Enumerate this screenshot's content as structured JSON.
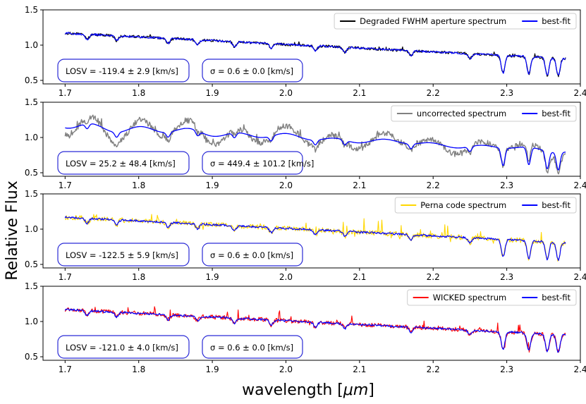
{
  "figure": {
    "ylabel": "Relative Flux",
    "xlabel_prefix": "wavelength [",
    "xlabel_unit": "μm",
    "xlabel_suffix": "]"
  },
  "chart_data": [
    {
      "type": "line",
      "xlim": [
        1.67,
        2.4
      ],
      "ylim": [
        0.45,
        1.5
      ],
      "xticks": [
        "1.7",
        "1.8",
        "1.9",
        "2.0",
        "2.1",
        "2.2",
        "2.3",
        "2.4"
      ],
      "yticks": [
        "0.5",
        "1.0",
        "1.5"
      ],
      "legend": {
        "placement": "top-right",
        "entries": [
          "Degraded FWHM aperture spectrum",
          "best-fit"
        ]
      },
      "annotations": [
        "LOSV = -119.4 ± 2.9 [km/s]",
        "σ = 0.6 ± 0.0 [km/s]"
      ],
      "series": [
        {
          "name": "Degraded FWHM aperture spectrum",
          "color": "#000000",
          "noise": 0.02,
          "spikes": 0.01,
          "width": 1.1
        },
        {
          "name": "best-fit",
          "color": "#0000ff",
          "noise": 0.014,
          "spikes": 0,
          "width": 1.2
        }
      ]
    },
    {
      "type": "line",
      "xlim": [
        1.67,
        2.4
      ],
      "ylim": [
        0.45,
        1.5
      ],
      "xticks": [
        "1.7",
        "1.8",
        "1.9",
        "2.0",
        "2.1",
        "2.2",
        "2.3",
        "2.4"
      ],
      "yticks": [
        "0.5",
        "1.0",
        "1.5"
      ],
      "legend": {
        "placement": "top-right",
        "entries": [
          "uncorrected spectrum",
          "best-fit"
        ]
      },
      "annotations": [
        "LOSV = 25.2 ± 48.4 [km/s]",
        "σ = 449.4 ± 101.2 [km/s]"
      ],
      "series": [
        {
          "name": "uncorrected spectrum",
          "color": "#808080",
          "noise": 0.04,
          "spikes": 0.02,
          "width": 1.4,
          "wiggle": 0.17
        },
        {
          "name": "best-fit",
          "color": "#0000ff",
          "noise": 0,
          "spikes": 0,
          "width": 1.3,
          "wiggle": 0.05,
          "smooth": true
        }
      ]
    },
    {
      "type": "line",
      "xlim": [
        1.67,
        2.4
      ],
      "ylim": [
        0.45,
        1.5
      ],
      "xticks": [
        "1.7",
        "1.8",
        "1.9",
        "2.0",
        "2.1",
        "2.2",
        "2.3",
        "2.4"
      ],
      "yticks": [
        "0.5",
        "1.0",
        "1.5"
      ],
      "legend": {
        "placement": "top-right",
        "entries": [
          "Perna code spectrum",
          "best-fit"
        ]
      },
      "annotations": [
        "LOSV = -122.5 ± 5.9 [km/s]",
        "σ = 0.6 ± 0.0 [km/s]"
      ],
      "series": [
        {
          "name": "Perna code spectrum",
          "color": "#ffd700",
          "noise": 0.035,
          "spikes": 0.04,
          "width": 1.1
        },
        {
          "name": "best-fit",
          "color": "#0000ff",
          "noise": 0.014,
          "spikes": 0,
          "width": 1.2
        }
      ]
    },
    {
      "type": "line",
      "xlim": [
        1.67,
        2.4
      ],
      "ylim": [
        0.45,
        1.5
      ],
      "xticks": [
        "1.7",
        "1.8",
        "1.9",
        "2.0",
        "2.1",
        "2.2",
        "2.3",
        "2.4"
      ],
      "yticks": [
        "0.5",
        "1.0",
        "1.5"
      ],
      "legend": {
        "placement": "top-right",
        "entries": [
          "WICKED spectrum",
          "best-fit"
        ]
      },
      "annotations": [
        "LOSV = -121.0 ± 4.0 [km/s]",
        "σ = 0.6 ± 0.0 [km/s]"
      ],
      "series": [
        {
          "name": "WICKED spectrum",
          "color": "#ff0000",
          "noise": 0.03,
          "spikes": 0.03,
          "width": 1.1
        },
        {
          "name": "best-fit",
          "color": "#0000ff",
          "noise": 0.014,
          "spikes": 0,
          "width": 1.2
        }
      ]
    }
  ]
}
